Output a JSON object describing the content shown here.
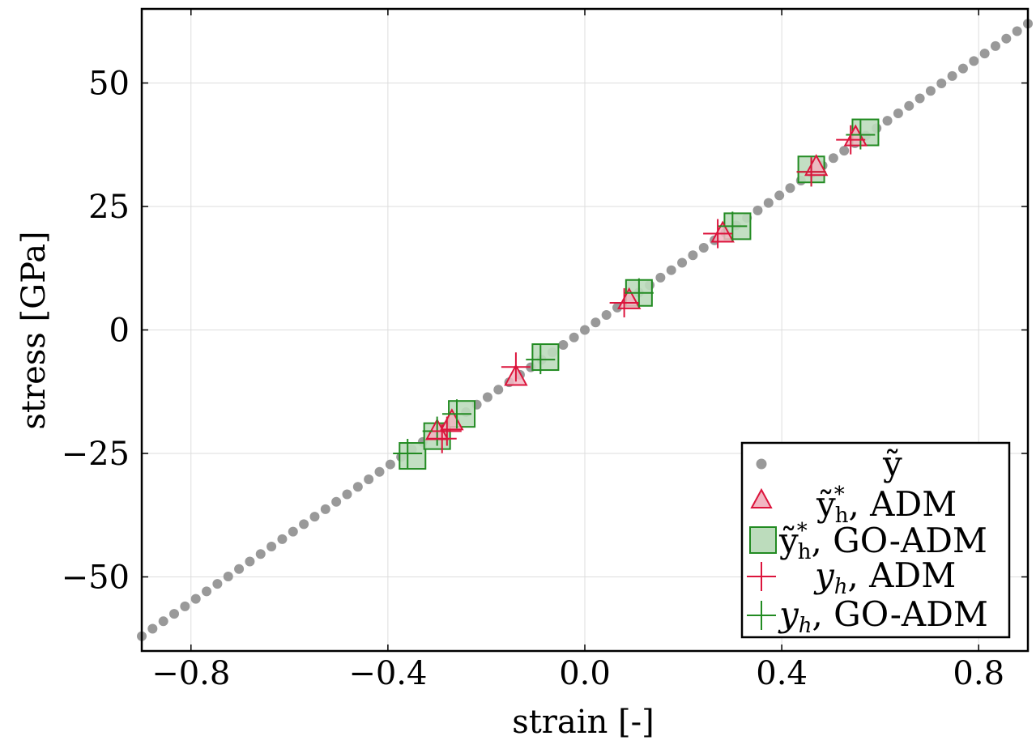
{
  "chart_data": {
    "type": "scatter",
    "title": "",
    "xlabel": "strain [-]",
    "ylabel": "stress [GPa]",
    "xlim": [
      -0.9,
      0.9
    ],
    "ylim": [
      -65,
      65
    ],
    "grid": true,
    "legend_position": "lower-right",
    "xticks": [
      -0.8,
      -0.4,
      0.0,
      0.4,
      0.8
    ],
    "xtick_labels": [
      "−0.8",
      "−0.4",
      "0.0",
      "0.4",
      "0.8"
    ],
    "yticks": [
      -50,
      -25,
      0,
      25,
      50
    ],
    "ytick_labels": [
      "−50",
      "−25",
      "0",
      "25",
      "50"
    ],
    "legend": {
      "ytilde": "ỹ",
      "adm_star": ", ADM",
      "go_star": ", GO-ADM",
      "yh_adm": ", ADM",
      "yh_go": ", GO-ADM",
      "sym_y": "y",
      "sub_h": "h",
      "sup_star": "*"
    },
    "colors": {
      "reference": "#999999",
      "adm": "#dc143c",
      "adm_fill": "#f2b6c2",
      "go": "#228b22",
      "go_fill": "#bcdcbc"
    },
    "series": [
      {
        "name": "ỹ",
        "marker": "circle",
        "x_start": -0.9,
        "x_end": 0.9,
        "count": 83,
        "slope": 68.9
      },
      {
        "name": "ỹ*h, ADM",
        "marker": "triangle",
        "x": [
          -0.3,
          -0.27,
          -0.14,
          0.09,
          0.28,
          0.47,
          0.55
        ],
        "y": [
          -20.5,
          -18.5,
          -9.5,
          6.0,
          19.5,
          33.0,
          39.0
        ]
      },
      {
        "name": "ỹ*h, GO-ADM",
        "marker": "square",
        "x": [
          -0.35,
          -0.3,
          -0.25,
          -0.08,
          0.11,
          0.31,
          0.46,
          0.57
        ],
        "y": [
          -25.5,
          -21.5,
          -17.0,
          -5.5,
          7.5,
          21.0,
          32.5,
          40.0
        ]
      },
      {
        "name": "yh, ADM",
        "marker": "plus",
        "x": [
          -0.29,
          -0.28,
          -0.14,
          0.08,
          0.27,
          0.46,
          0.54
        ],
        "y": [
          -22.0,
          -20.5,
          -7.5,
          5.5,
          19.5,
          32.0,
          38.5
        ]
      },
      {
        "name": "yh, GO-ADM",
        "marker": "plus",
        "x": [
          -0.36,
          -0.3,
          -0.26,
          -0.09,
          0.11,
          0.3,
          0.46,
          0.56
        ],
        "y": [
          -25.0,
          -20.5,
          -17.0,
          -6.0,
          7.5,
          21.0,
          32.0,
          39.5
        ]
      }
    ]
  }
}
